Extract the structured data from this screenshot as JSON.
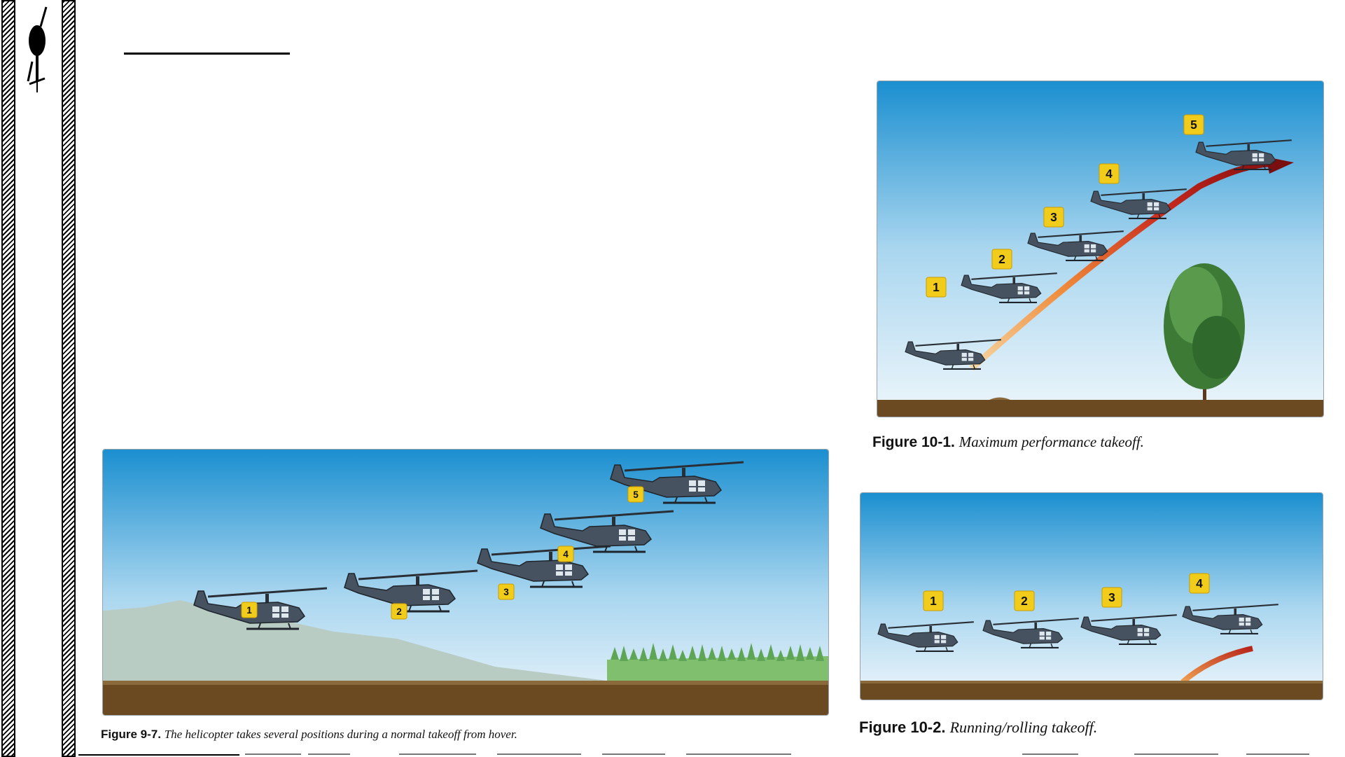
{
  "page": {
    "title_line": ""
  },
  "figures": {
    "fig97": {
      "label": "Figure 9-7.",
      "caption": "The helicopter takes several positions during a normal takeoff from hover.",
      "markers": [
        "1",
        "2",
        "3",
        "4",
        "5"
      ]
    },
    "fig101": {
      "label": "Figure 10-1.",
      "caption": "Maximum performance takeoff.",
      "markers": [
        "1",
        "2",
        "3",
        "4",
        "5"
      ]
    },
    "fig102": {
      "label": "Figure 10-2.",
      "caption": "Running/rolling takeoff.",
      "markers": [
        "1",
        "2",
        "3",
        "4"
      ]
    }
  },
  "icons": [
    "helicopter-icon"
  ],
  "colors": {
    "sky_top": "#1b8fd0",
    "sky_bottom": "#e9f4fb",
    "ground": "#6b4a22",
    "marker": "#f2cc1a",
    "path_red": "#b8241a",
    "path_orange": "#f0a050"
  }
}
